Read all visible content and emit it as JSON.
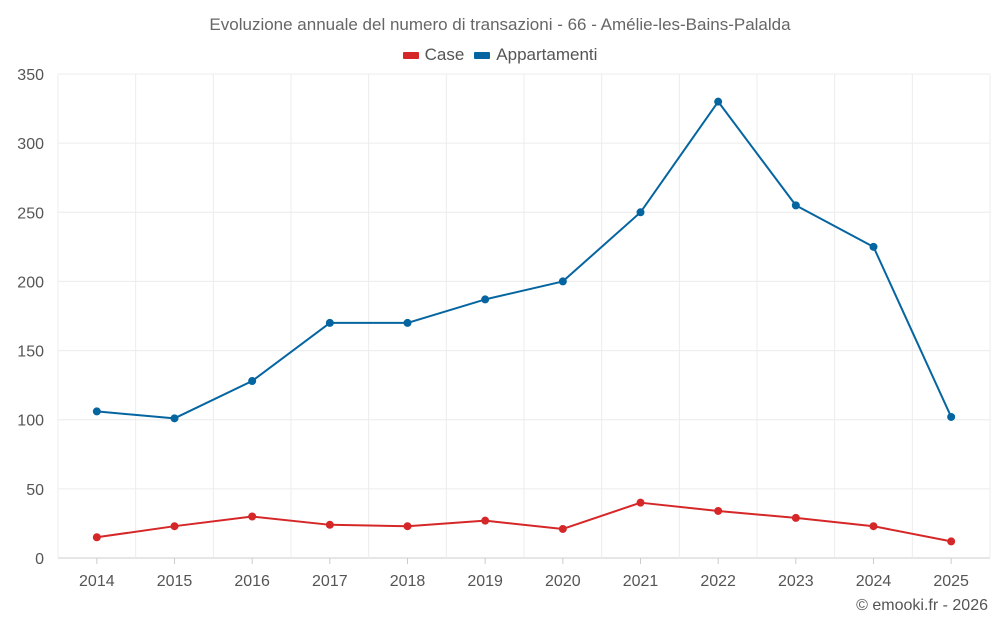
{
  "chart_data": {
    "type": "line",
    "title": "Evoluzione annuale del numero di transazioni - 66 - Amélie-les-Bains-Palalda",
    "categories": [
      "2014",
      "2015",
      "2016",
      "2017",
      "2018",
      "2019",
      "2020",
      "2021",
      "2022",
      "2023",
      "2024",
      "2025"
    ],
    "series": [
      {
        "name": "Case",
        "color": "#d62728",
        "values": [
          15,
          23,
          30,
          24,
          23,
          27,
          21,
          40,
          34,
          29,
          23,
          12
        ]
      },
      {
        "name": "Appartamenti",
        "color": "#0565a0",
        "values": [
          106,
          101,
          128,
          170,
          170,
          187,
          200,
          250,
          330,
          255,
          225,
          102
        ]
      }
    ],
    "y_ticks": [
      "0",
      "50",
      "100",
      "150",
      "200",
      "250",
      "300",
      "350"
    ],
    "ylim": [
      0,
      350
    ],
    "xlabel": "",
    "ylabel": "",
    "grid": true,
    "legend_position": "top-center"
  },
  "credit": "© emooki.fr - 2026"
}
